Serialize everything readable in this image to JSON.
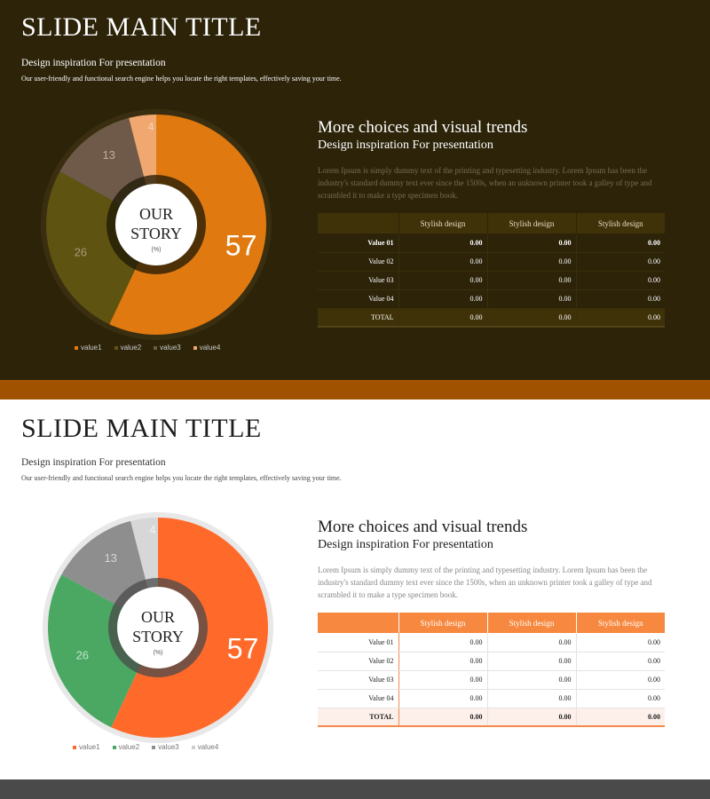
{
  "slides": [
    {
      "theme": "dark",
      "title": "SLIDE MAIN TITLE",
      "subtitle": "Design inspiration For presentation",
      "description": "Our user-friendly and functional search engine helps you locate the right templates, effectively saving your time.",
      "right_title": "More choices and visual trends",
      "right_subtitle": "Design inspiration For presentation",
      "right_body": "Lorem Ipsum is simply dummy text of the printing and typesetting industry. Lorem Ipsum has been the industry's standard dummy text ever since the 1500s, when an unknown printer took a galley of type and scrambled it to make a type specimen book.",
      "center_line1": "OUR",
      "center_line2": "STORY",
      "center_unit": "(%)",
      "legend": [
        "value1",
        "value2",
        "value3",
        "value4"
      ],
      "colors": {
        "value1": "#e07a10",
        "value2": "#5e5310",
        "value3": "#6f5a4a",
        "value4": "#f0a870"
      },
      "table": {
        "headers": [
          "",
          "Stylish design",
          "Stylish design",
          "Stylish design"
        ],
        "rows": [
          [
            "Value 01",
            "0.00",
            "0.00",
            "0.00"
          ],
          [
            "Value 02",
            "0.00",
            "0.00",
            "0.00"
          ],
          [
            "Value 03",
            "0.00",
            "0.00",
            "0.00"
          ],
          [
            "Value 04",
            "0.00",
            "0.00",
            "0.00"
          ],
          [
            "TOTAL",
            "0.00",
            "0.00",
            "0.00"
          ]
        ]
      }
    },
    {
      "theme": "light",
      "title": "SLIDE MAIN TITLE",
      "subtitle": "Design inspiration For presentation",
      "description": "Our user-friendly and functional search engine helps you locate the right templates, effectively saving your time.",
      "right_title": "More choices and visual trends",
      "right_subtitle": "Design inspiration For presentation",
      "right_body": "Lorem Ipsum is simply dummy text of the printing and typesetting industry. Lorem Ipsum has been the industry's standard dummy text ever since the 1500s, when an unknown printer took a galley of type and scrambled it to make a type specimen book.",
      "center_line1": "OUR",
      "center_line2": "STORY",
      "center_unit": "(%)",
      "legend": [
        "value1",
        "value2",
        "value3",
        "value4"
      ],
      "colors": {
        "value1": "#ff6a2b",
        "value2": "#4aa862",
        "value3": "#8e8e8e",
        "value4": "#cfcfcf"
      },
      "table": {
        "headers": [
          "",
          "Stylish design",
          "Stylish design",
          "Stylish design"
        ],
        "rows": [
          [
            "Value 01",
            "0.00",
            "0.00",
            "0.00"
          ],
          [
            "Value 02",
            "0.00",
            "0.00",
            "0.00"
          ],
          [
            "Value 03",
            "0.00",
            "0.00",
            "0.00"
          ],
          [
            "Value 04",
            "0.00",
            "0.00",
            "0.00"
          ],
          [
            "TOTAL",
            "0.00",
            "0.00",
            "0.00"
          ]
        ]
      }
    }
  ],
  "chart_data": [
    {
      "type": "pie",
      "categories": [
        "value1",
        "value2",
        "value3",
        "value4"
      ],
      "values": [
        57,
        26,
        13,
        4
      ],
      "labels": [
        "57",
        "26",
        "13",
        "4"
      ],
      "center_text": "OUR STORY",
      "unit": "(%)"
    },
    {
      "type": "pie",
      "categories": [
        "value1",
        "value2",
        "value3",
        "value4"
      ],
      "values": [
        57,
        26,
        13,
        4
      ],
      "labels": [
        "57",
        "26",
        "13",
        "4"
      ],
      "center_text": "OUR STORY",
      "unit": "(%)"
    }
  ]
}
